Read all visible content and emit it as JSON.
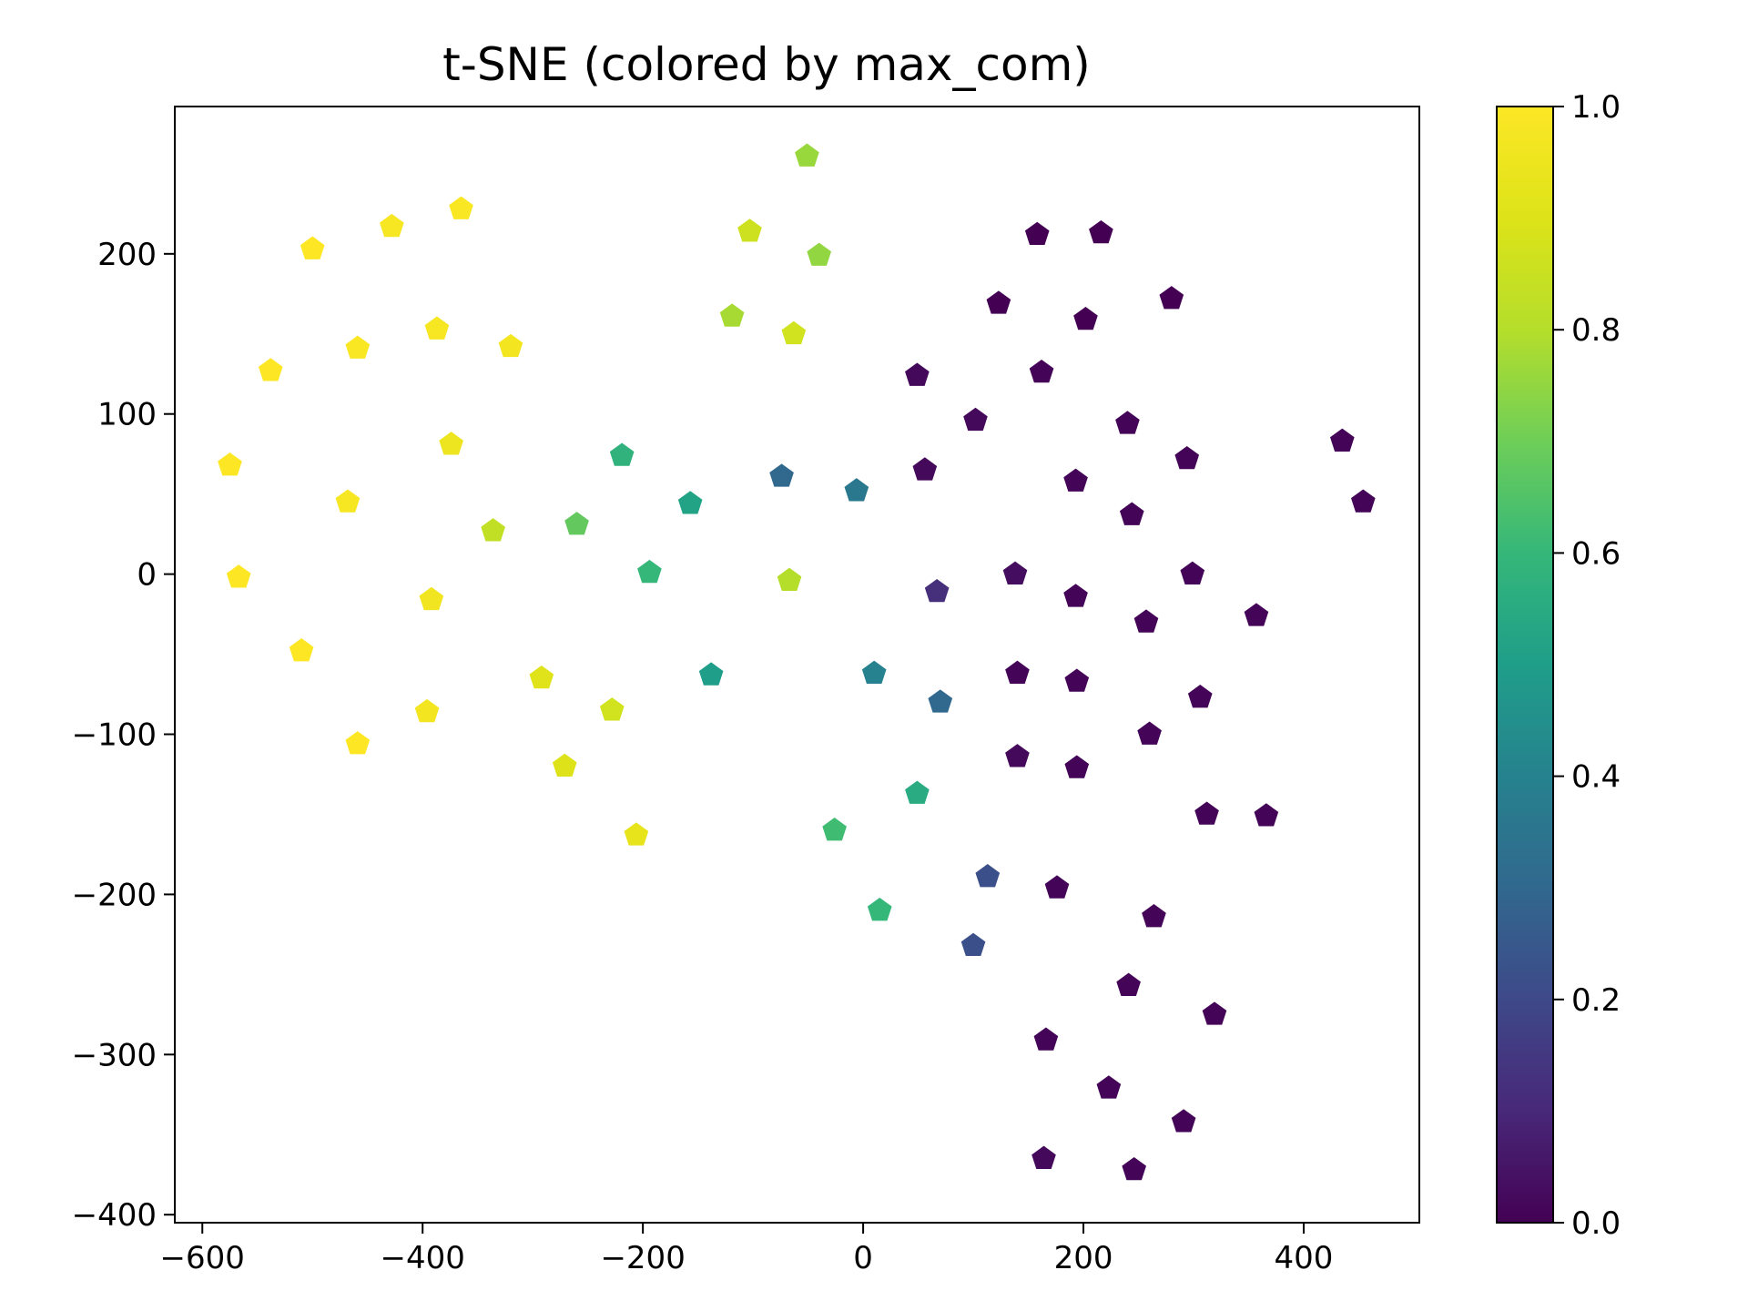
{
  "chart_data": {
    "type": "scatter",
    "title": "t-SNE (colored by max_com)",
    "xlabel": "",
    "ylabel": "",
    "xlim": [
      -625,
      505
    ],
    "ylim": [
      -405,
      292
    ],
    "x_ticks": [
      -600,
      -400,
      -200,
      0,
      200,
      400
    ],
    "x_tick_labels": [
      "−600",
      "−400",
      "−200",
      "0",
      "200",
      "400"
    ],
    "y_ticks": [
      -400,
      -300,
      -200,
      -100,
      0,
      100,
      200
    ],
    "y_tick_labels": [
      "−400",
      "−300",
      "−200",
      "−100",
      "0",
      "100",
      "200"
    ],
    "grid": false,
    "marker": "pentagon",
    "colormap": "viridis",
    "colorbar": {
      "range": [
        0.0,
        1.0
      ],
      "ticks": [
        0.0,
        0.2,
        0.4,
        0.6,
        0.8,
        1.0
      ],
      "tick_labels": [
        "0.0",
        "0.2",
        "0.4",
        "0.6",
        "0.8",
        "1.0"
      ]
    },
    "points": [
      {
        "x": -575,
        "y": 68,
        "c": 1.0
      },
      {
        "x": -567,
        "y": -2,
        "c": 1.0
      },
      {
        "x": -538,
        "y": 127,
        "c": 1.0
      },
      {
        "x": -510,
        "y": -48,
        "c": 1.0
      },
      {
        "x": -500,
        "y": 203,
        "c": 1.0
      },
      {
        "x": -468,
        "y": 45,
        "c": 0.98
      },
      {
        "x": -459,
        "y": 141,
        "c": 0.99
      },
      {
        "x": -459,
        "y": -106,
        "c": 1.0
      },
      {
        "x": -428,
        "y": 217,
        "c": 0.98
      },
      {
        "x": -396,
        "y": -86,
        "c": 0.97
      },
      {
        "x": -392,
        "y": -16,
        "c": 0.96
      },
      {
        "x": -387,
        "y": 153,
        "c": 0.98
      },
      {
        "x": -374,
        "y": 81,
        "c": 0.95
      },
      {
        "x": -365,
        "y": 228,
        "c": 0.99
      },
      {
        "x": -320,
        "y": 142,
        "c": 0.97
      },
      {
        "x": -336,
        "y": 27,
        "c": 0.83
      },
      {
        "x": -292,
        "y": -65,
        "c": 0.91
      },
      {
        "x": -271,
        "y": -120,
        "c": 0.9
      },
      {
        "x": -260,
        "y": 31,
        "c": 0.68
      },
      {
        "x": -228,
        "y": -85,
        "c": 0.87
      },
      {
        "x": -219,
        "y": 74,
        "c": 0.58
      },
      {
        "x": -206,
        "y": -163,
        "c": 0.93
      },
      {
        "x": -194,
        "y": 1,
        "c": 0.6
      },
      {
        "x": -157,
        "y": 44,
        "c": 0.52
      },
      {
        "x": -138,
        "y": -63,
        "c": 0.5
      },
      {
        "x": -119,
        "y": 161,
        "c": 0.78
      },
      {
        "x": -103,
        "y": 214,
        "c": 0.86
      },
      {
        "x": -74,
        "y": 61,
        "c": 0.3
      },
      {
        "x": -67,
        "y": -4,
        "c": 0.8
      },
      {
        "x": -63,
        "y": 150,
        "c": 0.87
      },
      {
        "x": -51,
        "y": 261,
        "c": 0.76
      },
      {
        "x": -40,
        "y": 199,
        "c": 0.75
      },
      {
        "x": -26,
        "y": -160,
        "c": 0.62
      },
      {
        "x": -6,
        "y": 52,
        "c": 0.36
      },
      {
        "x": 10,
        "y": -62,
        "c": 0.4
      },
      {
        "x": 15,
        "y": -210,
        "c": 0.6
      },
      {
        "x": 49,
        "y": -137,
        "c": 0.55
      },
      {
        "x": 49,
        "y": 124,
        "c": 0.02
      },
      {
        "x": 56,
        "y": 65,
        "c": 0.02
      },
      {
        "x": 67,
        "y": -11,
        "c": 0.12
      },
      {
        "x": 70,
        "y": -80,
        "c": 0.3
      },
      {
        "x": 100,
        "y": -232,
        "c": 0.22
      },
      {
        "x": 102,
        "y": 96,
        "c": 0.02
      },
      {
        "x": 113,
        "y": -189,
        "c": 0.22
      },
      {
        "x": 123,
        "y": 169,
        "c": 0.0
      },
      {
        "x": 138,
        "y": 0,
        "c": 0.03
      },
      {
        "x": 140,
        "y": -62,
        "c": 0.01
      },
      {
        "x": 140,
        "y": -114,
        "c": 0.02
      },
      {
        "x": 158,
        "y": 212,
        "c": 0.0
      },
      {
        "x": 162,
        "y": 126,
        "c": 0.01
      },
      {
        "x": 164,
        "y": -365,
        "c": 0.02
      },
      {
        "x": 166,
        "y": -291,
        "c": 0.01
      },
      {
        "x": 176,
        "y": -196,
        "c": 0.01
      },
      {
        "x": 193,
        "y": 58,
        "c": 0.01
      },
      {
        "x": 193,
        "y": -14,
        "c": 0.01
      },
      {
        "x": 194,
        "y": -67,
        "c": 0.01
      },
      {
        "x": 194,
        "y": -121,
        "c": 0.01
      },
      {
        "x": 202,
        "y": 159,
        "c": 0.0
      },
      {
        "x": 216,
        "y": 213,
        "c": 0.0
      },
      {
        "x": 223,
        "y": -321,
        "c": 0.01
      },
      {
        "x": 240,
        "y": 94,
        "c": 0.01
      },
      {
        "x": 241,
        "y": -257,
        "c": 0.01
      },
      {
        "x": 244,
        "y": 37,
        "c": 0.01
      },
      {
        "x": 246,
        "y": -372,
        "c": 0.01
      },
      {
        "x": 257,
        "y": -30,
        "c": 0.01
      },
      {
        "x": 260,
        "y": -100,
        "c": 0.01
      },
      {
        "x": 264,
        "y": -214,
        "c": 0.01
      },
      {
        "x": 280,
        "y": 172,
        "c": 0.0
      },
      {
        "x": 291,
        "y": -342,
        "c": 0.01
      },
      {
        "x": 294,
        "y": 72,
        "c": 0.01
      },
      {
        "x": 299,
        "y": 0,
        "c": 0.01
      },
      {
        "x": 306,
        "y": -77,
        "c": 0.01
      },
      {
        "x": 312,
        "y": -150,
        "c": 0.01
      },
      {
        "x": 319,
        "y": -275,
        "c": 0.01
      },
      {
        "x": 357,
        "y": -26,
        "c": 0.01
      },
      {
        "x": 366,
        "y": -151,
        "c": 0.01
      },
      {
        "x": 435,
        "y": 83,
        "c": 0.01
      },
      {
        "x": 454,
        "y": 45,
        "c": 0.01
      }
    ]
  }
}
